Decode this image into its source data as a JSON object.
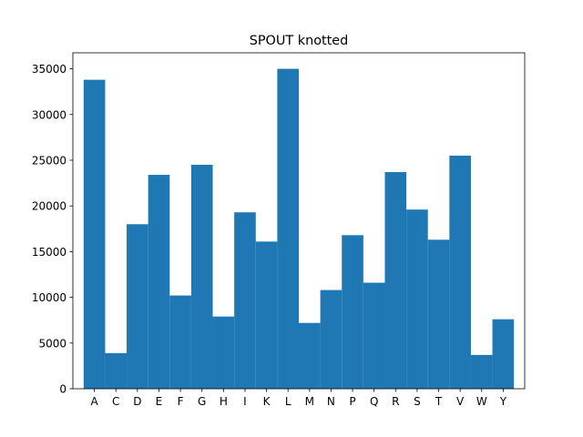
{
  "chart_data": {
    "type": "bar",
    "title": "SPOUT knotted",
    "xlabel": "",
    "ylabel": "",
    "categories": [
      "A",
      "C",
      "D",
      "E",
      "F",
      "G",
      "H",
      "I",
      "K",
      "L",
      "M",
      "N",
      "P",
      "Q",
      "R",
      "S",
      "T",
      "V",
      "W",
      "Y"
    ],
    "values": [
      33800,
      3900,
      18000,
      23400,
      10200,
      24500,
      7900,
      19300,
      16100,
      35000,
      7200,
      10800,
      16800,
      11600,
      23700,
      19600,
      16300,
      25500,
      3700,
      7600
    ],
    "ylim": [
      0,
      36750
    ],
    "yticks": [
      0,
      5000,
      10000,
      15000,
      20000,
      25000,
      30000,
      35000
    ],
    "grid": false,
    "bar_color": "#1f77b4"
  }
}
